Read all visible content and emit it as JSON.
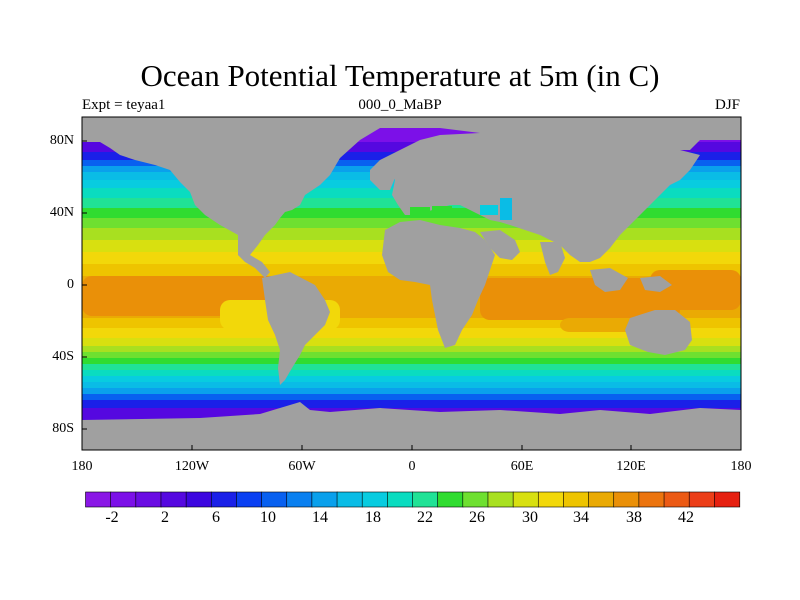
{
  "title": "Ocean Potential Temperature at 5m (in C)",
  "subtitle_left": "Expt = teyaa1",
  "subtitle_center": "000_0_MaBP",
  "subtitle_right": "DJF",
  "axes": {
    "y_ticks": [
      "80N",
      "40N",
      "0",
      "40S",
      "80S"
    ],
    "x_ticks": [
      "180",
      "120W",
      "60W",
      "0",
      "60E",
      "120E",
      "180"
    ],
    "lon_range": [
      -180,
      180
    ],
    "lat_range": [
      -90,
      90
    ]
  },
  "colors": {
    "land": "#a0a0a0",
    "frame": "#000000",
    "palette": [
      "#8a17e6",
      "#7c10e8",
      "#6a0ce3",
      "#5508e0",
      "#3c06e0",
      "#1a20e8",
      "#0a40f2",
      "#0860f0",
      "#0a80f0",
      "#0aa0ec",
      "#0abce6",
      "#08cce0",
      "#0adcc0",
      "#20e296",
      "#30dc30",
      "#6ee030",
      "#a8e020",
      "#d8e010",
      "#f2d80a",
      "#eec400",
      "#eaaa04",
      "#ea9008",
      "#ec740e",
      "#ec5a14",
      "#ec3e18",
      "#e62010"
    ]
  },
  "colorbar": {
    "labels": [
      "-2",
      "2",
      "6",
      "10",
      "14",
      "18",
      "22",
      "26",
      "30",
      "34",
      "38",
      "42"
    ],
    "min": -4,
    "step": 2,
    "count": 26
  }
}
